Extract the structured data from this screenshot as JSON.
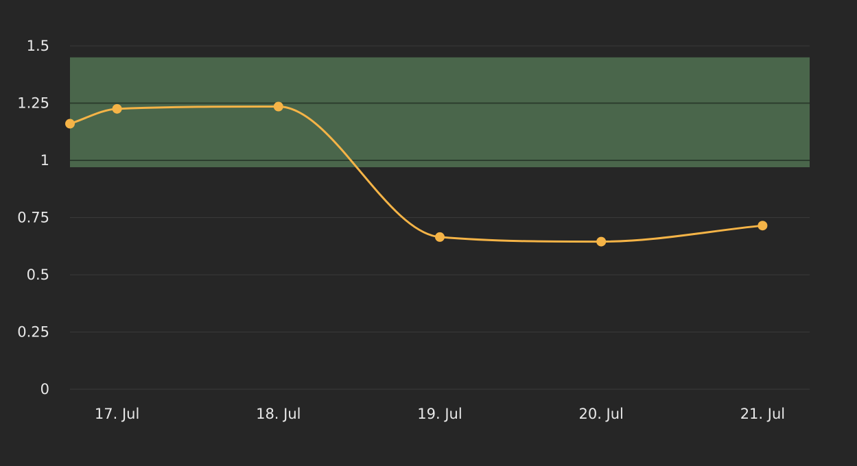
{
  "chart_data": {
    "type": "line",
    "title": "",
    "xlabel": "",
    "ylabel": "",
    "x_ticks": [
      "17. Jul",
      "18. Jul",
      "19. Jul",
      "20. Jul",
      "21. Jul"
    ],
    "y_ticks": [
      "0",
      "0.25",
      "0.5",
      "0.75",
      "1",
      "1.25",
      "1.5"
    ],
    "ylim": [
      0,
      1.5
    ],
    "xlim": [
      "2023-07-16T19:00",
      "2023-07-21T09:00"
    ],
    "grid": true,
    "legend": false,
    "plot_band": {
      "from": 0.97,
      "to": 1.45,
      "color": "#4a664b"
    },
    "series": [
      {
        "color": "#f5b447",
        "smooth": true,
        "points": [
          {
            "x": "2023-07-16T19:00",
            "y": 1.16
          },
          {
            "x": "2023-07-17T02:00",
            "y": 1.225
          },
          {
            "x": "2023-07-18T02:00",
            "y": 1.235
          },
          {
            "x": "2023-07-19T02:00",
            "y": 0.665
          },
          {
            "x": "2023-07-20T02:00",
            "y": 0.645
          },
          {
            "x": "2023-07-21T02:00",
            "y": 0.715
          }
        ]
      }
    ]
  }
}
